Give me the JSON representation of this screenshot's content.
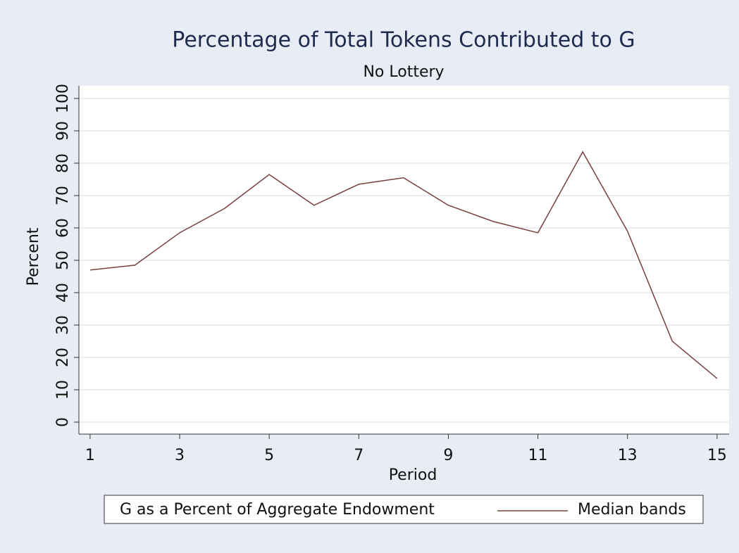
{
  "chart_data": {
    "type": "line",
    "title": "Percentage of Total Tokens Contributed to G",
    "subtitle": "No Lottery",
    "x_label": "Period",
    "y_label": "Percent",
    "legend_title": "G as a Percent of Aggregate Endowment",
    "x": [
      1,
      2,
      3,
      4,
      5,
      6,
      7,
      8,
      9,
      10,
      11,
      12,
      13,
      14,
      15
    ],
    "series": [
      {
        "name": "Median bands",
        "color": "#7b3f3f",
        "values": [
          47,
          48.5,
          58.5,
          66,
          76.5,
          67,
          73.5,
          75.5,
          67,
          62,
          58.5,
          83.5,
          59,
          25,
          13.5
        ]
      }
    ],
    "xlim": [
      0.75,
      15.27
    ],
    "xticks": [
      1,
      3,
      5,
      7,
      9,
      11,
      13,
      15
    ],
    "ylim": [
      -3.7,
      103.9
    ],
    "yticks": [
      0,
      10,
      20,
      30,
      40,
      50,
      60,
      70,
      80,
      90,
      100
    ],
    "grid": true
  }
}
